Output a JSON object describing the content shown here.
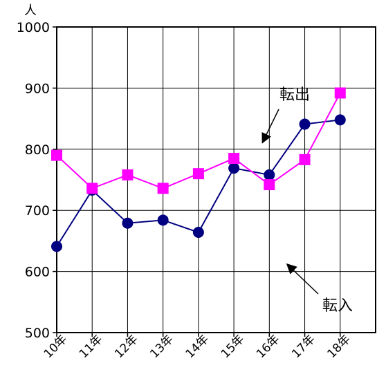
{
  "chart_data": {
    "type": "line",
    "categories": [
      "10年",
      "11年",
      "12年",
      "13年",
      "14年",
      "15年",
      "16年",
      "17年",
      "18年"
    ],
    "series": [
      {
        "name": "転出",
        "color": "#ff00ff",
        "marker": "square",
        "values": [
          790,
          736,
          758,
          736,
          760,
          785,
          742,
          783,
          892
        ]
      },
      {
        "name": "転入",
        "color": "#000080",
        "marker": "circle",
        "values": [
          641,
          733,
          679,
          684,
          664,
          769,
          758,
          841,
          848
        ]
      }
    ],
    "ylabel": "人",
    "ylim": [
      500,
      1000
    ],
    "yticks": [
      500,
      600,
      700,
      800,
      900,
      1000
    ],
    "grid": true,
    "annotations": [
      {
        "text": "転出",
        "series": "転出"
      },
      {
        "text": "転入",
        "series": "転入"
      }
    ]
  }
}
